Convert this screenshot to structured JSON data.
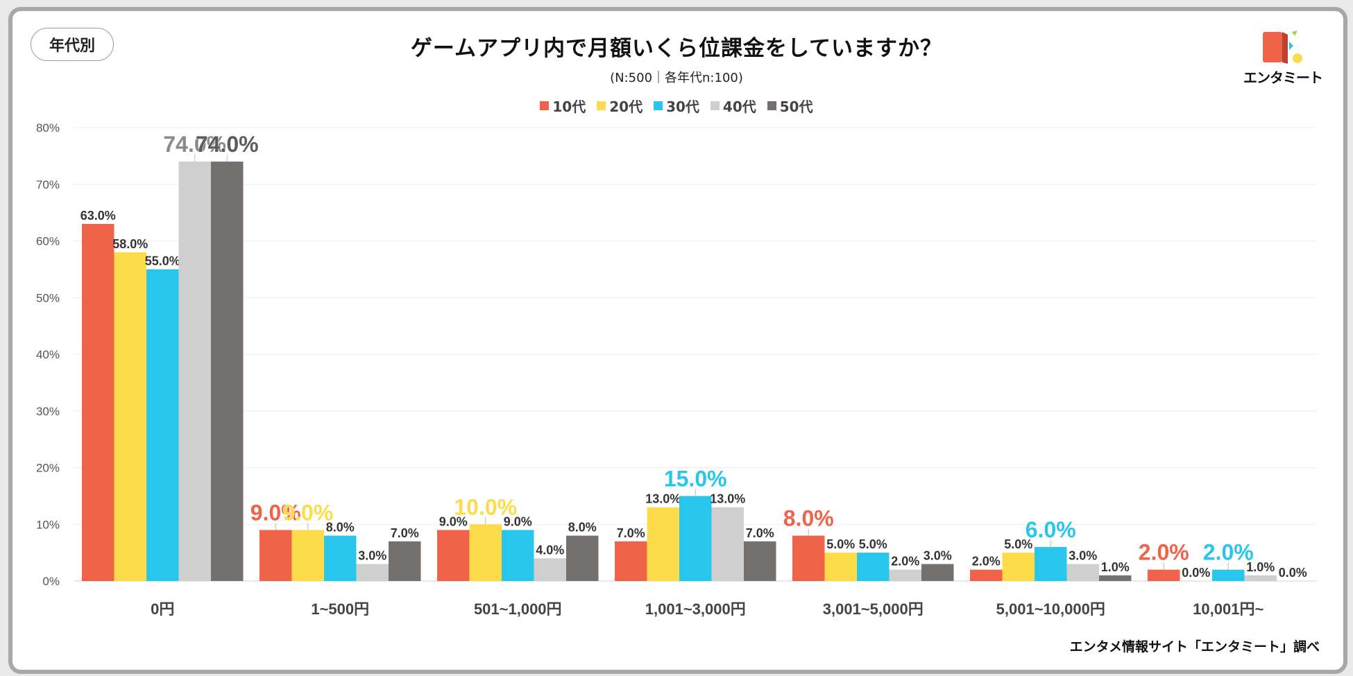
{
  "badge": "年代別",
  "logo_text": "エンタミート",
  "source": "エンタメ情報サイト「エンタミート」調べ",
  "chart_data": {
    "type": "bar",
    "title": "ゲームアプリ内で月額いくら位課金をしていますか？",
    "subtitle": "(N:500｜各年代n:100)",
    "xlabel": "",
    "ylabel": "",
    "ylim": [
      0,
      80
    ],
    "yticks": [
      "0%",
      "10%",
      "20%",
      "30%",
      "40%",
      "50%",
      "60%",
      "70%",
      "80%"
    ],
    "legend_position": "top-center",
    "categories": [
      "0円",
      "1~500円",
      "501~1,000円",
      "1,001~3,000円",
      "3,001~5,000円",
      "5,001~10,000円",
      "10,001円~"
    ],
    "series": [
      {
        "name": "10代",
        "color": "#ef634b",
        "values": [
          63.0,
          9.0,
          9.0,
          7.0,
          8.0,
          2.0,
          2.0
        ],
        "labels": [
          "63.0%",
          "9.0%",
          "9.0%",
          "7.0%",
          "8.0%",
          "2.0%",
          "2.0%"
        ]
      },
      {
        "name": "20代",
        "color": "#fddc4c",
        "values": [
          58.0,
          9.0,
          10.0,
          13.0,
          5.0,
          5.0,
          0.0
        ],
        "labels": [
          "58.0%",
          "9.0%",
          "10.0%",
          "13.0%",
          "5.0%",
          "5.0%",
          "0.0%"
        ]
      },
      {
        "name": "30代",
        "color": "#28c6ec",
        "values": [
          55.0,
          8.0,
          9.0,
          15.0,
          5.0,
          6.0,
          2.0
        ],
        "labels": [
          "55.0%",
          "8.0%",
          "9.0%",
          "15.0%",
          "5.0%",
          "6.0%",
          "2.0%"
        ]
      },
      {
        "name": "40代",
        "color": "#cfcfcf",
        "values": [
          74.0,
          3.0,
          4.0,
          13.0,
          2.0,
          3.0,
          1.0
        ],
        "labels": [
          "74.0%",
          "3.0%",
          "4.0%",
          "13.0%",
          "2.0%",
          "3.0%",
          "1.0%"
        ]
      },
      {
        "name": "50代",
        "color": "#757070",
        "values": [
          74.0,
          7.0,
          8.0,
          7.0,
          3.0,
          1.0,
          0.0
        ],
        "labels": [
          "74.0%",
          "7.0%",
          "8.0%",
          "7.0%",
          "3.0%",
          "1.0%",
          "0.0%"
        ]
      }
    ],
    "highlights": [
      {
        "category": 0,
        "series": 3
      },
      {
        "category": 0,
        "series": 4
      },
      {
        "category": 1,
        "series": 0
      },
      {
        "category": 1,
        "series": 1
      },
      {
        "category": 2,
        "series": 1
      },
      {
        "category": 3,
        "series": 2
      },
      {
        "category": 4,
        "series": 0
      },
      {
        "category": 5,
        "series": 2
      },
      {
        "category": 6,
        "series": 0
      },
      {
        "category": 6,
        "series": 2
      }
    ]
  }
}
